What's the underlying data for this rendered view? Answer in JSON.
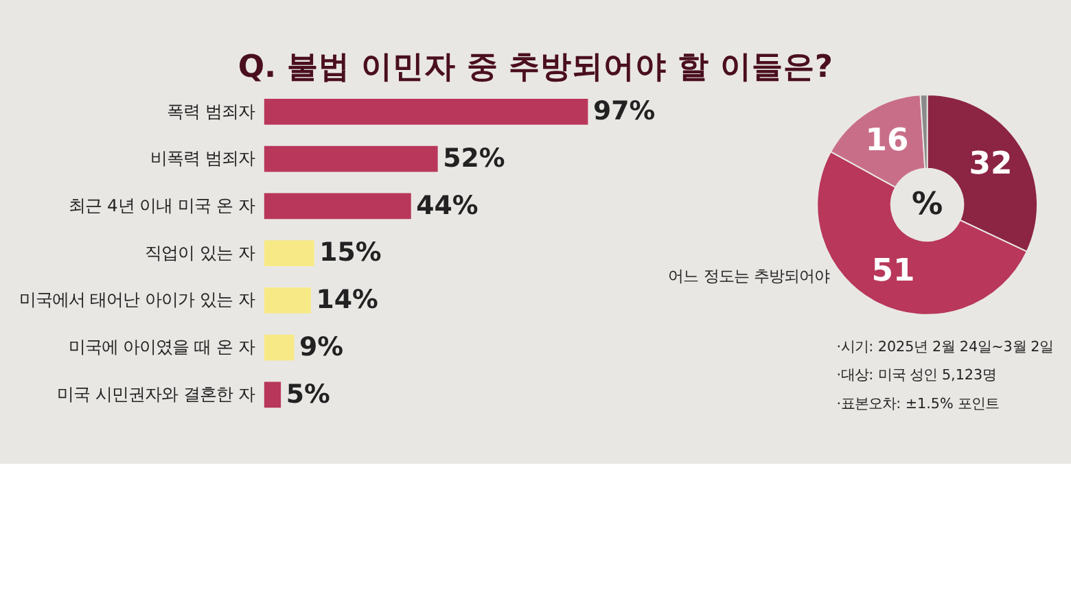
{
  "chart_data": [
    {
      "type": "bar",
      "title": "Q. 불법 이민자 중 추방되어야 할 이들은?",
      "orientation": "horizontal",
      "categories": [
        "폭력 범죄자",
        "비폭력 범죄자",
        "최근 4년 이내 미국 온 자",
        "직업이 있는 자",
        "미국에서 태어난 아이가 있는 자",
        "미국에 아이였을 때 온 자",
        "미국 시민권자와 결혼한 자"
      ],
      "values": [
        97,
        52,
        44,
        15,
        14,
        9,
        5
      ],
      "colors": [
        "#b8375a",
        "#b8375a",
        "#b8375a",
        "#f7ea86",
        "#f7ea86",
        "#f7ea86",
        "#b8375a"
      ],
      "value_labels": [
        "97%",
        "52%",
        "44%",
        "15%",
        "14%",
        "9%",
        "5%"
      ]
    },
    {
      "type": "donut",
      "categories": [
        null,
        null,
        null,
        null
      ],
      "values": [
        32,
        51,
        16,
        1
      ],
      "colors": [
        "#8c2444",
        "#b8375a",
        "#c96e89",
        "#8a8a8a"
      ],
      "value_labels": [
        "32",
        "51",
        "16",
        null
      ],
      "annotations": [
        "%",
        "어느 정도는 추방되어야",
        "·시기: 2025년 2월 24일~3월 2일",
        "·대상: 미국 성인 5,123명",
        "·표본오차:  ±1.5% 포인트"
      ]
    }
  ]
}
